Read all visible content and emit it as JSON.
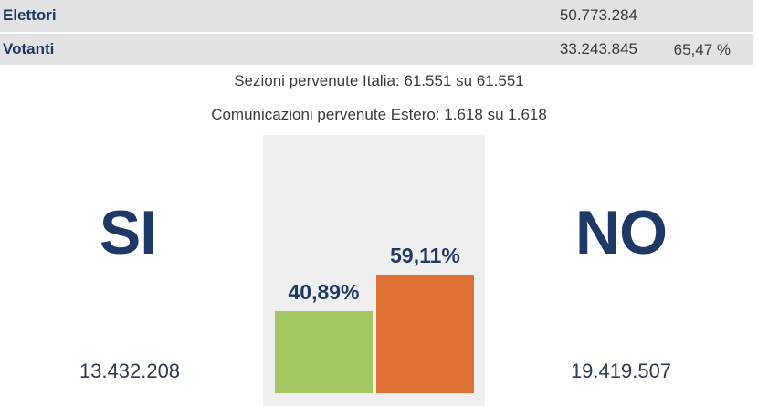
{
  "stats": {
    "elettori_label": "Elettori",
    "elettori_value": "50.773.284",
    "votanti_label": "Votanti",
    "votanti_value": "33.243.845",
    "votanti_pct": "65,47 %"
  },
  "info": {
    "sezioni": "Sezioni pervenute Italia: 61.551 su 61.551",
    "comunicazioni": "Comunicazioni pervenute Estero: 1.618 su 1.618"
  },
  "result": {
    "si_label": "SI",
    "no_label": "NO",
    "si_count": "13.432.208",
    "no_count": "19.419.507"
  },
  "colors": {
    "si": "#a5c862",
    "no": "#de7133",
    "heading": "#1e3966"
  },
  "chart_data": {
    "type": "bar",
    "categories": [
      "SI",
      "NO"
    ],
    "values": [
      40.89,
      59.11
    ],
    "value_labels": [
      "40,89%",
      "59,11%"
    ],
    "ylim": [
      0,
      100
    ],
    "grid": false
  }
}
